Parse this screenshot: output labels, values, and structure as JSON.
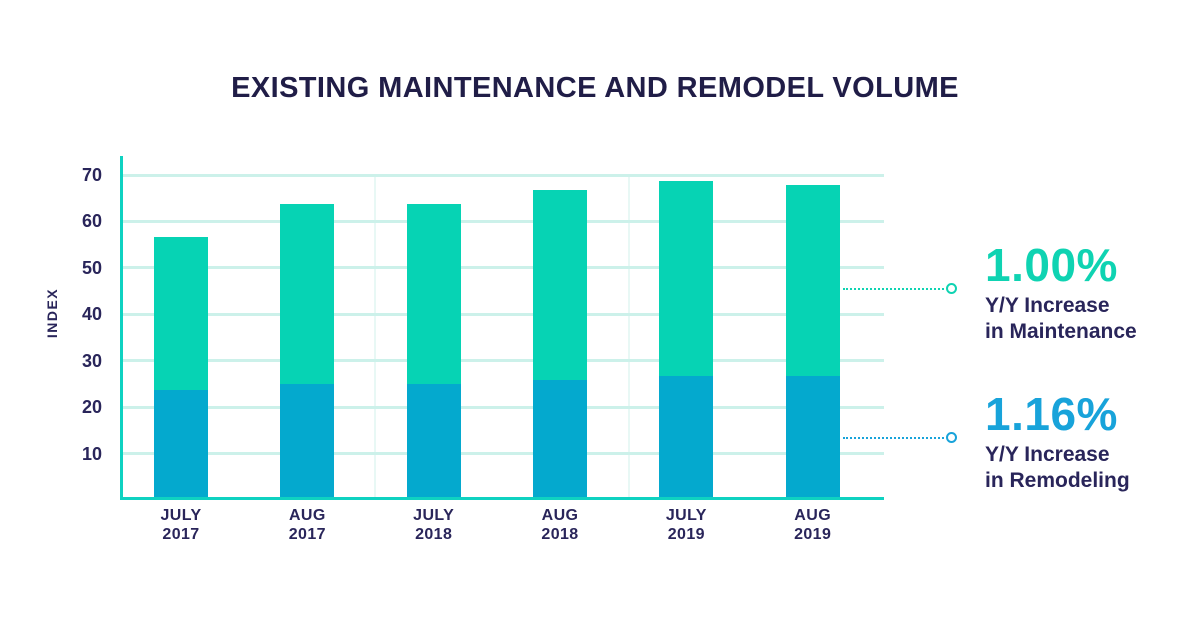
{
  "title": "EXISTING MAINTENANCE AND REMODEL VOLUME",
  "chart_data": {
    "type": "bar",
    "stacked": true,
    "title": "EXISTING MAINTENANCE AND REMODEL VOLUME",
    "xlabel": "",
    "ylabel": "INDEX",
    "ylim": [
      0,
      70
    ],
    "yticks": [
      10,
      20,
      30,
      40,
      50,
      60,
      70
    ],
    "grid": true,
    "legend_position": "none",
    "categories": [
      [
        "JULY",
        "2017"
      ],
      [
        "AUG",
        "2017"
      ],
      [
        "JULY",
        "2018"
      ],
      [
        "AUG",
        "2018"
      ],
      [
        "JULY",
        "2019"
      ],
      [
        "AUG",
        "2019"
      ]
    ],
    "series": [
      {
        "name": "Remodeling",
        "color": "#04a9ce",
        "values": [
          23.8,
          24.9,
          24.9,
          25.8,
          26.7,
          26.7
        ]
      },
      {
        "name": "Maintenance",
        "color": "#06d3b4",
        "values": [
          32.9,
          38.8,
          38.8,
          41.0,
          42.1,
          41.1
        ]
      }
    ],
    "stack_totals": [
      56.7,
      63.7,
      63.7,
      66.8,
      68.8,
      67.8
    ]
  },
  "callouts": [
    {
      "value": "1.00%",
      "line1": "Y/Y Increase",
      "line2": "in Maintenance",
      "color": "#0fd3b2"
    },
    {
      "value": "1.16%",
      "line1": "Y/Y Increase",
      "line2": "in Remodeling",
      "color": "#18a3da"
    }
  ],
  "colors": {
    "maintenance": "#06d3b4",
    "remodeling": "#04a9ce",
    "axis": "#0fd2c1",
    "gridline": "#ccf1ea",
    "vertical_gridline": "#e8f8f5",
    "text_navy": "#29255a",
    "title_navy": "#201d47"
  }
}
